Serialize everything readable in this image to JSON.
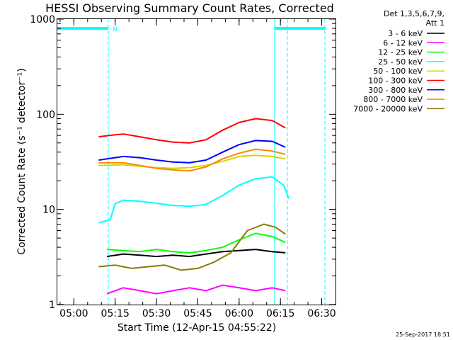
{
  "chart_data": {
    "type": "line",
    "title": "HESSI Observing Summary Count Rates, Corrected",
    "ylabel": "Corrected Count Rate (s⁻¹ detector⁻¹)",
    "xlabel": "Start Time (12-Apr-15 04:55:22)",
    "y_scale": "log",
    "ylim": [
      1,
      1000
    ],
    "y_ticks": [
      {
        "value": 1,
        "label": "1"
      },
      {
        "value": 10,
        "label": "10"
      },
      {
        "value": 100,
        "label": "100"
      },
      {
        "value": 1000,
        "label": "1000"
      }
    ],
    "xlim": [
      4.9,
      6.5833
    ],
    "x_ticks": [
      {
        "value": 5.0,
        "label": "05:00"
      },
      {
        "value": 5.25,
        "label": "05:15"
      },
      {
        "value": 5.5,
        "label": "05:30"
      },
      {
        "value": 5.75,
        "label": "05:45"
      },
      {
        "value": 6.0,
        "label": "06:00"
      },
      {
        "value": 6.25,
        "label": "06:15"
      },
      {
        "value": 6.5,
        "label": "06:30"
      }
    ],
    "legend_header": [
      "Det 1,3,5,6,7,9,",
      "Att 1"
    ],
    "legend_position": "right",
    "series": [
      {
        "name": "3 - 6 keV",
        "color": "#000000",
        "points": [
          [
            5.2,
            3.2
          ],
          [
            5.3,
            3.4
          ],
          [
            5.4,
            3.3
          ],
          [
            5.5,
            3.2
          ],
          [
            5.6,
            3.3
          ],
          [
            5.7,
            3.2
          ],
          [
            5.8,
            3.4
          ],
          [
            5.9,
            3.6
          ],
          [
            6.0,
            3.7
          ],
          [
            6.1,
            3.8
          ],
          [
            6.2,
            3.6
          ],
          [
            6.28,
            3.5
          ]
        ]
      },
      {
        "name": "6 - 12 keV",
        "color": "#ff00ff",
        "points": [
          [
            5.2,
            1.3
          ],
          [
            5.3,
            1.5
          ],
          [
            5.4,
            1.4
          ],
          [
            5.5,
            1.3
          ],
          [
            5.6,
            1.4
          ],
          [
            5.7,
            1.5
          ],
          [
            5.8,
            1.4
          ],
          [
            5.9,
            1.6
          ],
          [
            6.0,
            1.5
          ],
          [
            6.1,
            1.4
          ],
          [
            6.2,
            1.5
          ],
          [
            6.28,
            1.4
          ]
        ]
      },
      {
        "name": "12 - 25 keV",
        "color": "#00ff00",
        "points": [
          [
            5.2,
            3.8
          ],
          [
            5.3,
            3.7
          ],
          [
            5.4,
            3.6
          ],
          [
            5.5,
            3.8
          ],
          [
            5.6,
            3.6
          ],
          [
            5.7,
            3.5
          ],
          [
            5.8,
            3.7
          ],
          [
            5.9,
            4.0
          ],
          [
            6.0,
            4.8
          ],
          [
            6.1,
            5.6
          ],
          [
            6.2,
            5.2
          ],
          [
            6.28,
            4.5
          ]
        ]
      },
      {
        "name": "25 - 50 keV",
        "color": "#00ffff",
        "points": [
          [
            5.15,
            7.2
          ],
          [
            5.22,
            7.8
          ],
          [
            5.25,
            11.5
          ],
          [
            5.3,
            12.5
          ],
          [
            5.4,
            12.2
          ],
          [
            5.5,
            11.6
          ],
          [
            5.6,
            11.0
          ],
          [
            5.7,
            10.8
          ],
          [
            5.8,
            11.3
          ],
          [
            5.9,
            14.0
          ],
          [
            6.0,
            18.0
          ],
          [
            6.1,
            21.0
          ],
          [
            6.2,
            22.0
          ],
          [
            6.27,
            18.0
          ],
          [
            6.3,
            13.0
          ]
        ]
      },
      {
        "name": "50 - 100 keV",
        "color": "#d4d400",
        "points": [
          [
            5.15,
            29
          ],
          [
            5.3,
            29.5
          ],
          [
            5.4,
            28.5
          ],
          [
            5.5,
            27.5
          ],
          [
            5.6,
            27
          ],
          [
            5.7,
            27.5
          ],
          [
            5.8,
            29
          ],
          [
            5.9,
            32
          ],
          [
            6.0,
            36
          ],
          [
            6.1,
            37
          ],
          [
            6.2,
            36
          ],
          [
            6.28,
            34
          ]
        ]
      },
      {
        "name": "100 - 300 keV",
        "color": "#ff0000",
        "points": [
          [
            5.15,
            58
          ],
          [
            5.25,
            61
          ],
          [
            5.3,
            62
          ],
          [
            5.4,
            58
          ],
          [
            5.5,
            54
          ],
          [
            5.6,
            51
          ],
          [
            5.7,
            50
          ],
          [
            5.8,
            54
          ],
          [
            5.9,
            68
          ],
          [
            6.0,
            82
          ],
          [
            6.1,
            90
          ],
          [
            6.2,
            86
          ],
          [
            6.28,
            72
          ]
        ]
      },
      {
        "name": "300 - 800 keV",
        "color": "#0000ff",
        "points": [
          [
            5.15,
            33
          ],
          [
            5.3,
            36
          ],
          [
            5.4,
            35
          ],
          [
            5.5,
            33
          ],
          [
            5.6,
            31.5
          ],
          [
            5.7,
            31
          ],
          [
            5.8,
            33
          ],
          [
            5.9,
            40
          ],
          [
            6.0,
            48
          ],
          [
            6.1,
            53
          ],
          [
            6.2,
            52
          ],
          [
            6.28,
            45
          ]
        ]
      },
      {
        "name": "800 - 7000 keV",
        "color": "#ff8800",
        "points": [
          [
            5.15,
            31
          ],
          [
            5.3,
            31
          ],
          [
            5.4,
            29
          ],
          [
            5.5,
            27
          ],
          [
            5.6,
            26
          ],
          [
            5.7,
            25.5
          ],
          [
            5.8,
            28
          ],
          [
            5.9,
            34
          ],
          [
            6.0,
            39
          ],
          [
            6.1,
            43
          ],
          [
            6.2,
            41
          ],
          [
            6.28,
            38
          ]
        ]
      },
      {
        "name": "7000 - 20000 keV",
        "color": "#8b7b00",
        "points": [
          [
            5.15,
            2.5
          ],
          [
            5.25,
            2.6
          ],
          [
            5.35,
            2.4
          ],
          [
            5.45,
            2.5
          ],
          [
            5.55,
            2.6
          ],
          [
            5.65,
            2.3
          ],
          [
            5.75,
            2.4
          ],
          [
            5.85,
            2.8
          ],
          [
            5.95,
            3.5
          ],
          [
            6.05,
            6.0
          ],
          [
            6.15,
            7.0
          ],
          [
            6.22,
            6.5
          ],
          [
            6.28,
            5.5
          ]
        ]
      }
    ],
    "annotations": {
      "n_label": "N"
    }
  },
  "footer": {
    "stamp": "25-Sep-2017 18:51"
  }
}
